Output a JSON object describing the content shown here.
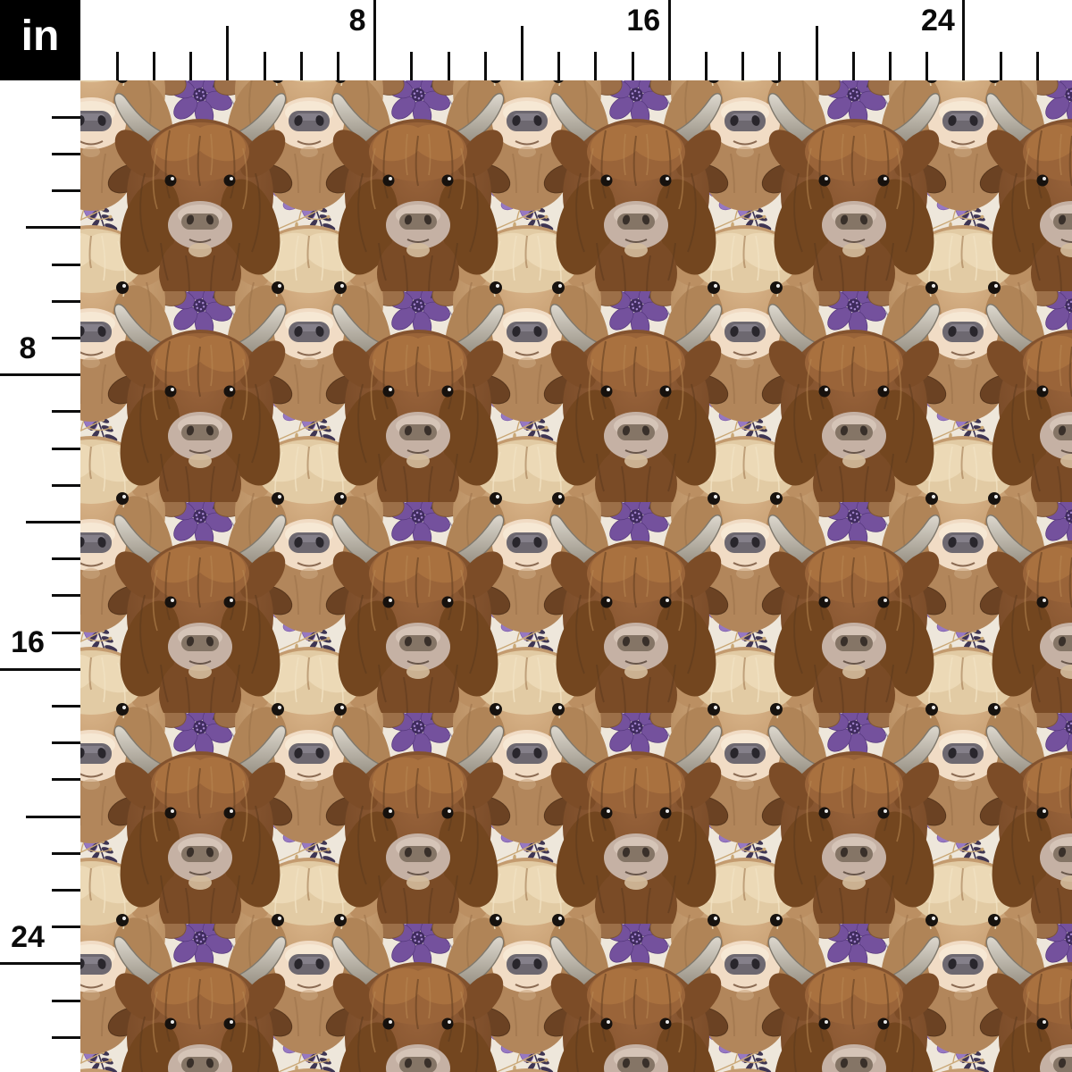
{
  "ruler": {
    "unit_label": "in",
    "top_labels": [
      {
        "text": "8",
        "inch": 8
      },
      {
        "text": "16",
        "inch": 16
      },
      {
        "text": "24",
        "inch": 24
      }
    ],
    "left_labels": [
      {
        "text": "8",
        "inch": 8
      },
      {
        "text": "16",
        "inch": 16
      },
      {
        "text": "24",
        "inch": 24
      }
    ],
    "tick_count_inches": 26,
    "label_every_inches": 8,
    "medium_tick_every_inches": 4
  },
  "swatch": {
    "description": "Seamless watercolor fabric pattern: alternating dark-brown and cream highland cow heads with grey horns, surrounded by purple flowers, lavender sprigs, plum and sage leaves and tan twigs on a cream background",
    "motifs": [
      "dark-brown-highland-cow-head",
      "cream-highland-cow-head",
      "large-purple-flower",
      "lilac-flower",
      "lavender-bud",
      "lavender-spray",
      "plum-leaf-sprig",
      "sage-leaf-sprig",
      "tan-twig",
      "star-flower"
    ],
    "colors": {
      "background": "#EEE7DB",
      "dark_cow_fur": "#81502B",
      "light_cow_fur": "#C89D72",
      "cow_fringe_cream": "#E8D4B2",
      "horn_grey": "#BDB6AA",
      "flower_purple": "#74519D",
      "flower_lilac": "#9678C2",
      "leaf_plum": "#3E3553",
      "leaf_sage": "#98A0AD",
      "twig_tan": "#C09A66",
      "ruler_background": "#FFFFFF",
      "tick_black": "#0D0D0D",
      "unit_box_black": "#000000"
    }
  }
}
